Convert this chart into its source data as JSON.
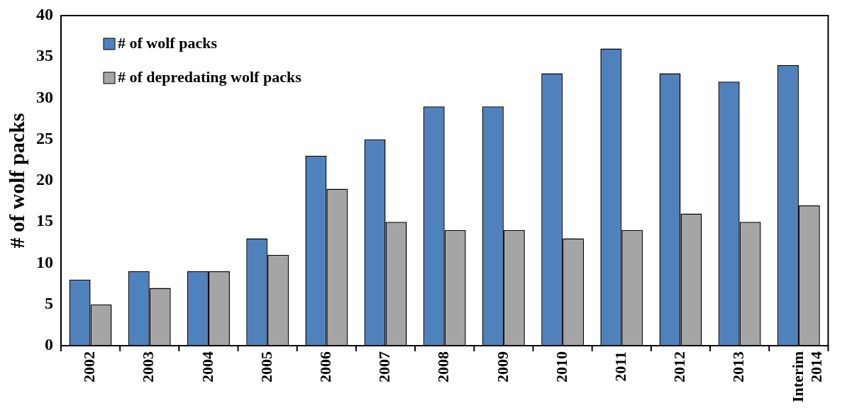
{
  "chart_data": {
    "type": "bar",
    "ylabel": "# of wolf packs",
    "categories": [
      "2002",
      "2003",
      "2004",
      "2005",
      "2006",
      "2007",
      "2008",
      "2009",
      "2010",
      "2011",
      "2012",
      "2013",
      "Interim 2014"
    ],
    "series": [
      {
        "name": "# of wolf packs",
        "color": "#4f81bd",
        "values": [
          8,
          9,
          9,
          13,
          23,
          25,
          29,
          29,
          33,
          36,
          33,
          32,
          34
        ]
      },
      {
        "name": "# of depredating wolf packs",
        "color": "#a5a5a5",
        "values": [
          5,
          7,
          9,
          11,
          19,
          15,
          14,
          14,
          13,
          14,
          16,
          15,
          17
        ]
      }
    ],
    "ylim": [
      0,
      40
    ],
    "yticks": [
      0,
      5,
      10,
      15,
      20,
      25,
      30,
      35,
      40
    ],
    "grid": false,
    "legend": "top left"
  }
}
